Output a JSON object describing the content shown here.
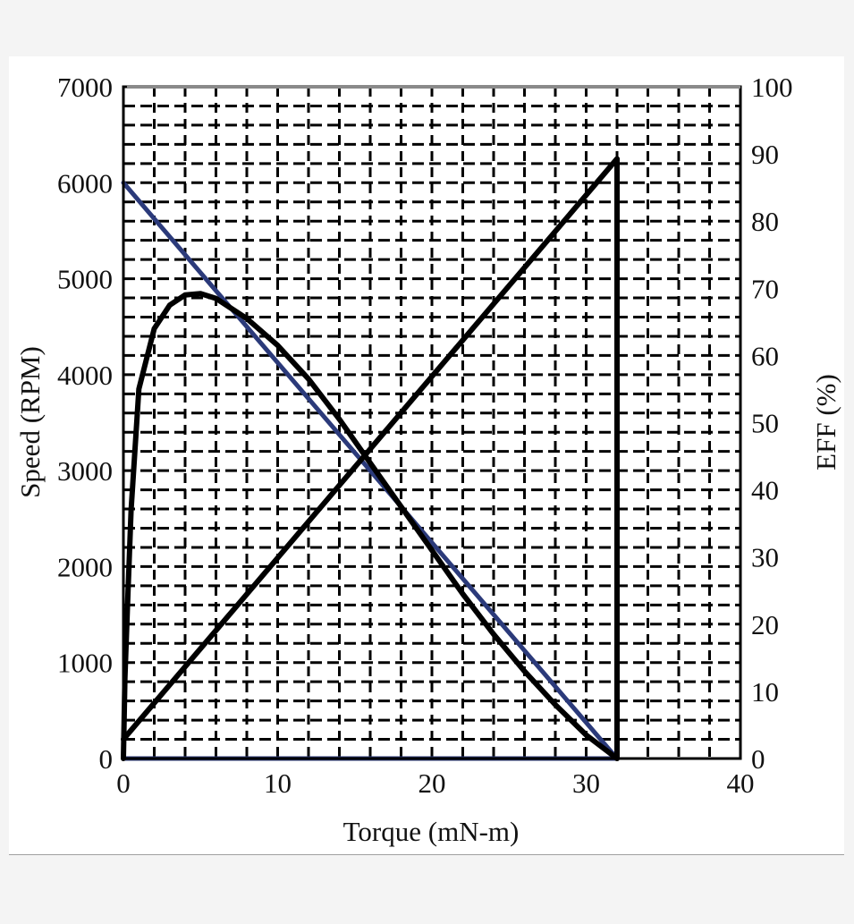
{
  "chart_data": {
    "type": "line",
    "title": "",
    "xlabel": "Torque (mN-m)",
    "ylabel": "Speed (RPM)",
    "y2label": "EFF (%)",
    "xlim": [
      0,
      40
    ],
    "ylim": [
      0,
      7000
    ],
    "y2lim": [
      0,
      100
    ],
    "xticks": [
      0,
      10,
      20,
      30,
      40
    ],
    "yticks": [
      0,
      1000,
      2000,
      3000,
      4000,
      5000,
      6000,
      7000
    ],
    "y2ticks": [
      0,
      10,
      20,
      30,
      40,
      50,
      60,
      70,
      80,
      90,
      100
    ],
    "grid": true,
    "grid_style": "dashed",
    "x_grid_step": 2,
    "y_grid_step": 200,
    "legend": "none",
    "series": [
      {
        "axis": "left",
        "color": "#2b3a7a",
        "points": [
          [
            0,
            6000
          ],
          [
            32,
            0
          ]
        ]
      },
      {
        "axis": "left",
        "color": "#2b3a7a",
        "points": [
          [
            0,
            0
          ],
          [
            32,
            0
          ]
        ]
      },
      {
        "axis": "left",
        "color": "#000000",
        "points": [
          [
            0,
            200
          ],
          [
            32,
            6250
          ],
          [
            32,
            0
          ]
        ]
      },
      {
        "axis": "right",
        "color": "#000000",
        "points": [
          [
            0,
            0
          ],
          [
            0.1,
            12
          ],
          [
            0.3,
            25
          ],
          [
            0.5,
            37
          ],
          [
            1,
            55
          ],
          [
            2,
            64
          ],
          [
            3,
            67.5
          ],
          [
            4,
            69
          ],
          [
            5,
            69.2
          ],
          [
            6,
            68.5
          ],
          [
            8,
            65.5
          ],
          [
            10,
            61.5
          ],
          [
            12,
            56.5
          ],
          [
            14,
            50.5
          ],
          [
            16,
            44
          ],
          [
            18,
            37.5
          ],
          [
            20,
            31
          ],
          [
            22,
            24.5
          ],
          [
            24,
            18.5
          ],
          [
            26,
            13
          ],
          [
            28,
            8
          ],
          [
            30,
            3.5
          ],
          [
            32,
            0
          ]
        ]
      }
    ]
  }
}
